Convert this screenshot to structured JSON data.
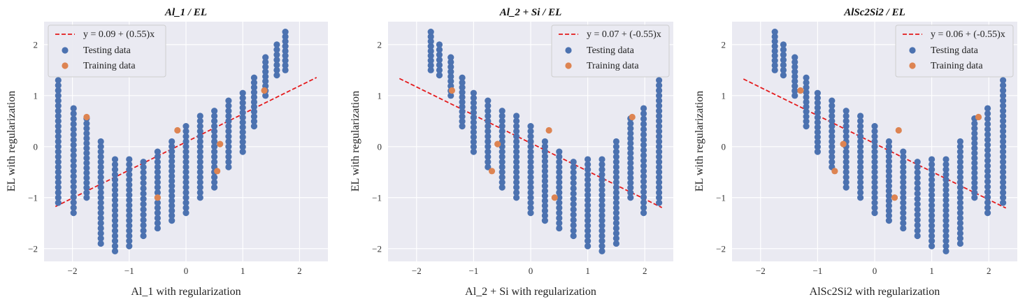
{
  "chart_data": [
    {
      "type": "scatter",
      "title": "Al_1 / EL",
      "xlabel": "Al_1 with regularization",
      "ylabel": "EL  with regularization",
      "xlim": [
        -2.5,
        2.5
      ],
      "ylim": [
        -2.25,
        2.45
      ],
      "xticks": [
        -2,
        -1,
        0,
        1,
        2
      ],
      "yticks": [
        -2,
        -1,
        0,
        1,
        2
      ],
      "grid": true,
      "legend_position": "top-left",
      "direction": 1,
      "fit_line": {
        "label": "y = 0.09 + (0.55)x",
        "intercept": 0.09,
        "slope": 0.55,
        "x_range": [
          -2.3,
          2.3
        ],
        "color": "#e41a1c"
      },
      "series": [
        {
          "name": "Testing data",
          "color": "#4c72b0"
        },
        {
          "name": "Training data",
          "color": "#dd8452",
          "points": [
            [
              -1.75,
              0.58
            ],
            [
              -0.15,
              0.32
            ],
            [
              0.6,
              0.05
            ],
            [
              0.55,
              -0.48
            ],
            [
              -0.5,
              -1.0
            ],
            [
              1.38,
              1.1
            ]
          ]
        }
      ],
      "testing_stripes": [
        {
          "x": -2.25,
          "y": [
            -1.1,
            1.3
          ]
        },
        {
          "x": -1.98,
          "y": [
            -1.3,
            0.75
          ]
        },
        {
          "x": -1.75,
          "y": [
            -1.0,
            0.55
          ]
        },
        {
          "x": -1.5,
          "y": [
            -1.9,
            0.1
          ]
        },
        {
          "x": -1.25,
          "y": [
            -2.05,
            -0.25
          ]
        },
        {
          "x": -1.0,
          "y": [
            -1.95,
            -0.25
          ]
        },
        {
          "x": -0.75,
          "y": [
            -1.75,
            -0.3
          ]
        },
        {
          "x": -0.5,
          "y": [
            -1.6,
            -0.1
          ]
        },
        {
          "x": -0.25,
          "y": [
            -1.45,
            0.1
          ]
        },
        {
          "x": 0.0,
          "y": [
            -1.3,
            0.4
          ]
        },
        {
          "x": 0.25,
          "y": [
            -1.0,
            0.6
          ]
        },
        {
          "x": 0.5,
          "y": [
            -0.8,
            0.7
          ]
        },
        {
          "x": 0.75,
          "y": [
            -0.4,
            0.9
          ]
        },
        {
          "x": 1.0,
          "y": [
            -0.1,
            1.05
          ]
        },
        {
          "x": 1.2,
          "y": [
            0.4,
            1.35
          ]
        },
        {
          "x": 1.4,
          "y": [
            1.0,
            1.75
          ]
        },
        {
          "x": 1.6,
          "y": [
            1.4,
            2.0
          ]
        },
        {
          "x": 1.75,
          "y": [
            1.5,
            2.25
          ]
        }
      ]
    },
    {
      "type": "scatter",
      "title": "Al_2 + Si / EL",
      "xlabel": "Al_2 + Si with regularization",
      "ylabel": "EL  with regularization",
      "xlim": [
        -2.5,
        2.5
      ],
      "ylim": [
        -2.25,
        2.45
      ],
      "xticks": [
        -2,
        -1,
        0,
        1,
        2
      ],
      "yticks": [
        -2,
        -1,
        0,
        1,
        2
      ],
      "grid": true,
      "legend_position": "top-right",
      "direction": -1,
      "fit_line": {
        "label": "y = 0.07 + (-0.55)x",
        "intercept": 0.07,
        "slope": -0.55,
        "x_range": [
          -2.3,
          2.3
        ],
        "color": "#e41a1c"
      },
      "series": [
        {
          "name": "Testing data",
          "color": "#4c72b0"
        },
        {
          "name": "Training data",
          "color": "#dd8452",
          "points": [
            [
              1.78,
              0.58
            ],
            [
              0.32,
              0.32
            ],
            [
              -0.58,
              0.05
            ],
            [
              -0.68,
              -0.48
            ],
            [
              0.42,
              -1.0
            ],
            [
              -1.38,
              1.1
            ]
          ]
        }
      ]
    },
    {
      "type": "scatter",
      "title": "AlSc2Si2 / EL",
      "xlabel": "AlSc2Si2 with regularization",
      "ylabel": "EL  with regularization",
      "xlim": [
        -2.5,
        2.5
      ],
      "ylim": [
        -2.25,
        2.45
      ],
      "xticks": [
        -2,
        -1,
        0,
        1,
        2
      ],
      "yticks": [
        -2,
        -1,
        0,
        1,
        2
      ],
      "grid": true,
      "legend_position": "top-right",
      "direction": -1,
      "fit_line": {
        "label": "y = 0.06 + (-0.55)x",
        "intercept": 0.06,
        "slope": -0.55,
        "x_range": [
          -2.3,
          2.3
        ],
        "color": "#e41a1c"
      },
      "series": [
        {
          "name": "Testing data",
          "color": "#4c72b0"
        },
        {
          "name": "Training data",
          "color": "#dd8452",
          "points": [
            [
              1.82,
              0.58
            ],
            [
              0.42,
              0.32
            ],
            [
              -0.55,
              0.05
            ],
            [
              -0.7,
              -0.48
            ],
            [
              0.35,
              -1.0
            ],
            [
              -1.3,
              1.1
            ]
          ]
        }
      ]
    }
  ]
}
